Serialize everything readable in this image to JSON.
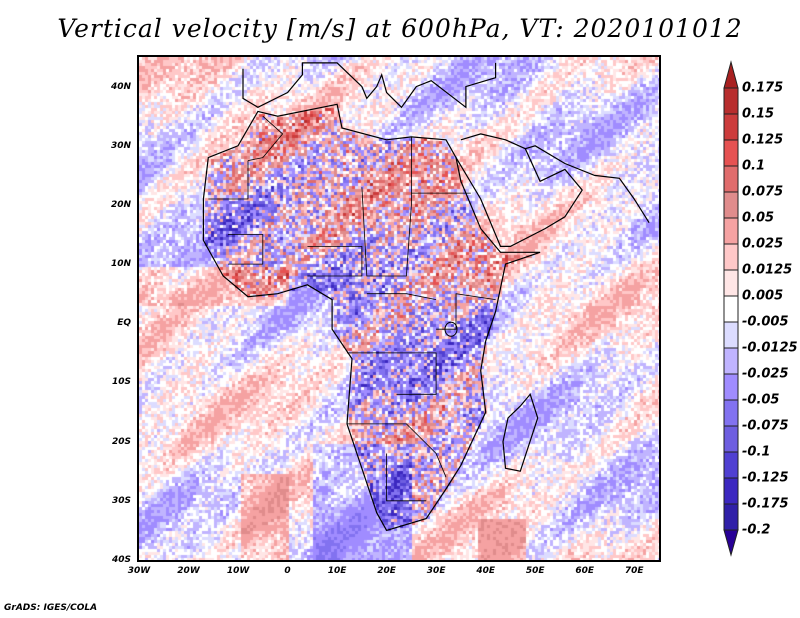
{
  "title": "Vertical velocity [m/s] at 600hPa, VT: 2020101012",
  "credit": "GrADS: IGES/COLA",
  "map": {
    "lon_range": [
      -30,
      75
    ],
    "lat_range": [
      -40,
      45
    ],
    "lat_labels": [
      {
        "v": 40,
        "t": "40N"
      },
      {
        "v": 30,
        "t": "30N"
      },
      {
        "v": 20,
        "t": "20N"
      },
      {
        "v": 10,
        "t": "10N"
      },
      {
        "v": 0,
        "t": "EQ"
      },
      {
        "v": -10,
        "t": "10S"
      },
      {
        "v": -20,
        "t": "20S"
      },
      {
        "v": -30,
        "t": "30S"
      },
      {
        "v": -40,
        "t": "40S"
      }
    ],
    "lon_labels": [
      {
        "v": -30,
        "t": "30W"
      },
      {
        "v": -20,
        "t": "20W"
      },
      {
        "v": -10,
        "t": "10W"
      },
      {
        "v": 0,
        "t": "0"
      },
      {
        "v": 10,
        "t": "10E"
      },
      {
        "v": 20,
        "t": "20E"
      },
      {
        "v": 30,
        "t": "30E"
      },
      {
        "v": 40,
        "t": "40E"
      },
      {
        "v": 50,
        "t": "50E"
      },
      {
        "v": 60,
        "t": "60E"
      },
      {
        "v": 70,
        "t": "70E"
      }
    ]
  },
  "colorbar": {
    "labels": [
      "0.175",
      "0.15",
      "0.125",
      "0.1",
      "0.075",
      "0.05",
      "0.025",
      "0.0125",
      "0.005",
      "-0.005",
      "-0.0125",
      "-0.025",
      "-0.05",
      "-0.075",
      "-0.1",
      "-0.125",
      "-0.175",
      "-0.2"
    ],
    "colors": [
      "#a82020",
      "#b82e2e",
      "#cc3c3c",
      "#e65252",
      "#e06c6c",
      "#e08c8c",
      "#f5a2a2",
      "#ffc8c8",
      "#ffe6e6",
      "#ffffff",
      "#dcdcff",
      "#c0b4ff",
      "#a08cff",
      "#8272f0",
      "#6e5ee0",
      "#5040d2",
      "#3c28c0",
      "#3020a8",
      "#280096"
    ]
  }
}
